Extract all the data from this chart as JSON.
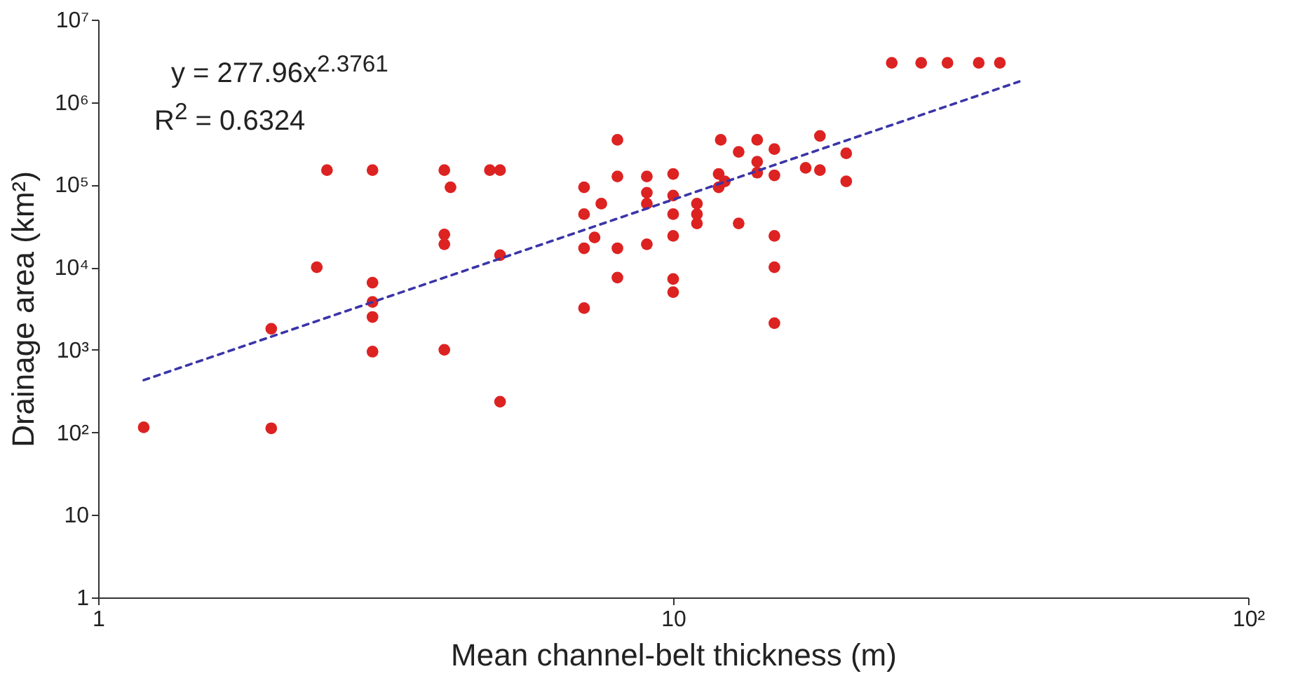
{
  "chart_data": {
    "type": "scatter",
    "xlabel": "Mean channel-belt thickness (m)",
    "ylabel": "Drainage area (km²)",
    "annotations": [
      "y = 277.96x$^{2.3761}$",
      "R$^{2}$ = 0.6324"
    ],
    "log": "xy",
    "grid": false,
    "xlim": [
      1,
      100
    ],
    "xticks": [
      1,
      10,
      {
        "value": 100,
        "label": "10²"
      }
    ],
    "ylim": [
      1,
      10000000
    ],
    "yticks": [
      1,
      10,
      {
        "value": 100,
        "label": "10²"
      },
      {
        "value": 1000,
        "label": "10³"
      },
      {
        "value": 10000,
        "label": "10⁴"
      },
      {
        "value": 100000,
        "label": "10⁵"
      },
      {
        "value": 1000000,
        "label": "10⁶"
      },
      {
        "value": 10000000,
        "label": "10⁷"
      }
    ],
    "series": [
      {
        "marker": "circle",
        "color": "#dd2222",
        "x": [
          1.2,
          2,
          2,
          2.4,
          2.5,
          3,
          3,
          3,
          3,
          3,
          4,
          4,
          4,
          4,
          4.1,
          4.8,
          5,
          5,
          5,
          7,
          7,
          7,
          7,
          7.3,
          7.5,
          8,
          8,
          8,
          8,
          9,
          9,
          9,
          9,
          10,
          10,
          10,
          10,
          10,
          10,
          11,
          11,
          11,
          12,
          12,
          12.1,
          12.3,
          13,
          13,
          14,
          14,
          14,
          15,
          15,
          15,
          15,
          15,
          17,
          18,
          18,
          20,
          20,
          24,
          27,
          30,
          34,
          37
        ],
        "values": [
          115,
          1800,
          112,
          10000,
          150000,
          150000,
          6500,
          3800,
          2500,
          950,
          150000,
          25000,
          19000,
          1000,
          93000,
          150000,
          150000,
          14000,
          235,
          93000,
          44000,
          17000,
          3200,
          23000,
          59000,
          350000,
          126000,
          17000,
          7500,
          126000,
          80000,
          59000,
          19000,
          135000,
          74000,
          44000,
          24000,
          7200,
          5000,
          59000,
          44000,
          34000,
          93000,
          135000,
          350000,
          110000,
          250000,
          34000,
          350000,
          190000,
          140000,
          270000,
          130000,
          24000,
          10000,
          2100,
          160000,
          390000,
          150000,
          240000,
          110000,
          3000000,
          3000000,
          3000000,
          3000000,
          3000000
        ]
      },
      {
        "type": "line",
        "color": "#3a35a8",
        "line_style": "dashed",
        "x": [
          1.2,
          40
        ],
        "values": [
          429,
          1781000
        ]
      }
    ]
  }
}
